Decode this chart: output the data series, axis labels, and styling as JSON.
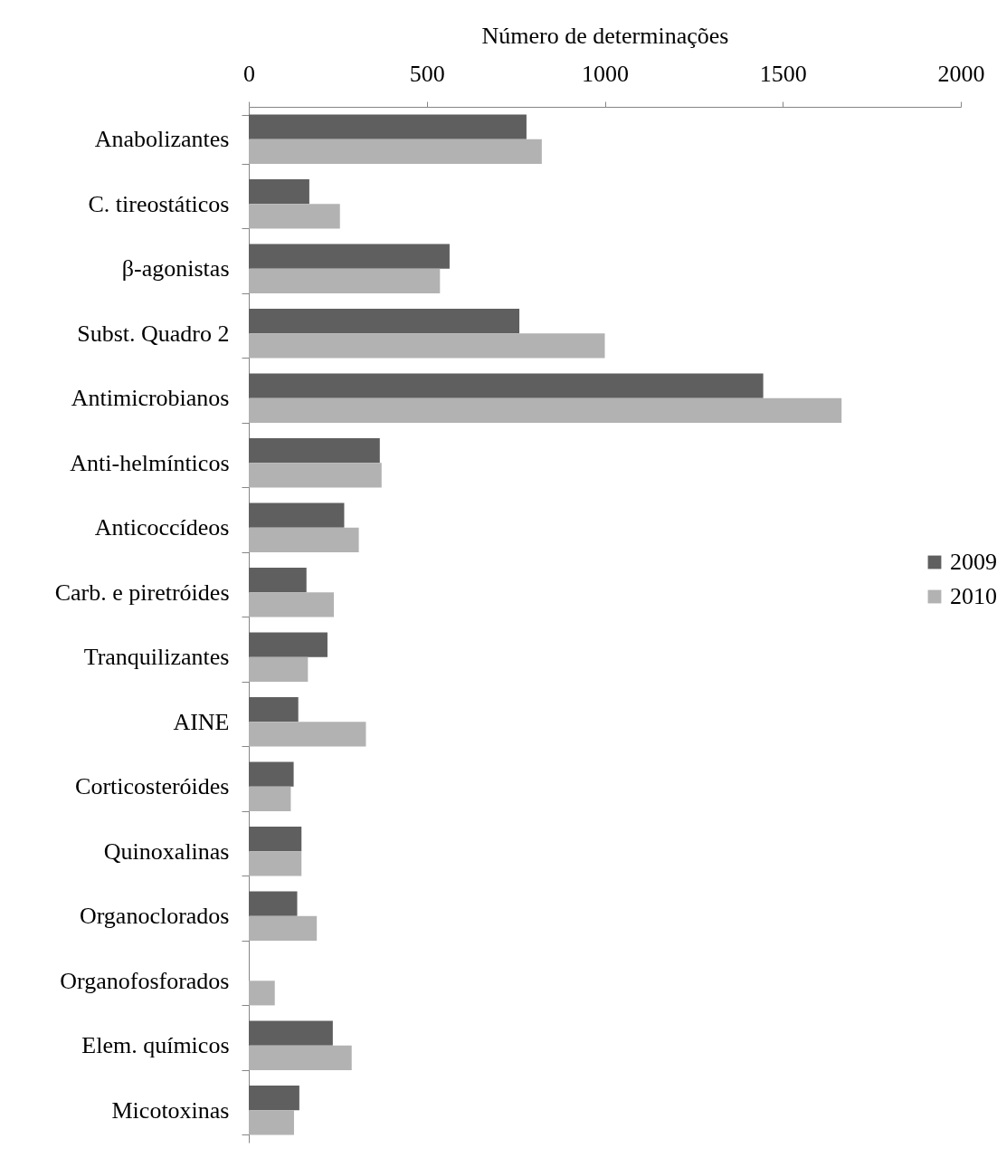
{
  "chart_data": {
    "type": "bar",
    "orientation": "horizontal",
    "xlabel": "Número de determinações",
    "categories": [
      "Anabolizantes",
      "C. tireostáticos",
      "β-agonistas",
      "Subst. Quadro 2",
      "Antimicrobianos",
      "Anti-helmínticos",
      "Anticoccídeos",
      "Carb. e piretróides",
      "Tranquilizantes",
      "AINE",
      "Corticosteróides",
      "Quinoxalinas",
      "Organoclorados",
      "Organofosforados",
      "Elem. químicos",
      "Micotoxinas"
    ],
    "series": [
      {
        "name": "2009",
        "color": "#5f5f5f",
        "values": [
          780,
          170,
          564,
          760,
          1445,
          368,
          268,
          162,
          221,
          139,
          126,
          148,
          136,
          0,
          236,
          142
        ]
      },
      {
        "name": "2010",
        "color": "#b2b2b2",
        "values": [
          823,
          256,
          537,
          1000,
          1665,
          373,
          309,
          239,
          166,
          329,
          118,
          148,
          191,
          73,
          289,
          127
        ]
      }
    ],
    "xlim": [
      0,
      2000
    ],
    "xticks": [
      0,
      500,
      1000,
      1500,
      2000
    ],
    "grid": false,
    "legend": "right"
  }
}
